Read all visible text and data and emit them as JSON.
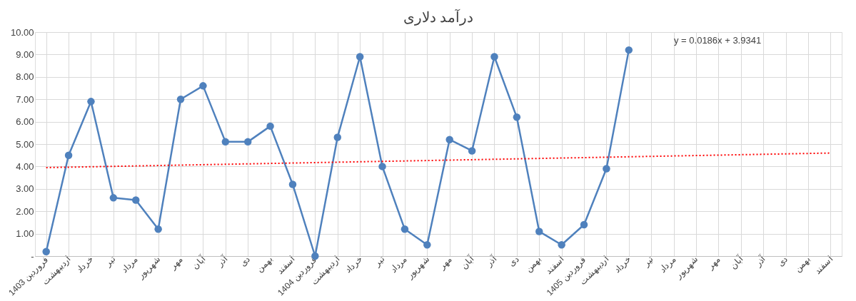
{
  "chart_data": {
    "type": "line",
    "title": "درآمد دلاری",
    "categories": [
      "فروردین 1403",
      "اردیبهشت",
      "خرداد",
      "تیر",
      "مرداد",
      "شهریور",
      "مهر",
      "آبان",
      "آذر",
      "دی",
      "بهمن",
      "اسفند",
      "فروردین 1404",
      "اردیبهشت",
      "خرداد",
      "تیر",
      "مرداد",
      "شهریور",
      "مهر",
      "آبان",
      "آذر",
      "دی",
      "بهمن",
      "اسفند",
      "فروردین 1405",
      "اردیبهشت",
      "خرداد",
      "تیر",
      "مرداد",
      "شهریور",
      "مهر",
      "آبان",
      "آذر",
      "دی",
      "بهمن",
      "اسفند"
    ],
    "series": [
      {
        "color": "#4f81bd",
        "marker": "circle",
        "line_style": "solid",
        "values": [
          0.2,
          4.5,
          6.9,
          2.6,
          2.5,
          1.2,
          7.0,
          7.6,
          5.1,
          5.1,
          5.8,
          3.2,
          0.0,
          5.3,
          8.9,
          4.0,
          1.2,
          0.5,
          5.2,
          4.7,
          8.9,
          6.2,
          1.1,
          0.5,
          1.4,
          3.9,
          9.2,
          null,
          null,
          null,
          null,
          null,
          null,
          null,
          null,
          null
        ]
      },
      {
        "color": "#ff0000",
        "marker": "none",
        "line_style": "dotted",
        "values": [
          3.95,
          null,
          null,
          null,
          null,
          null,
          null,
          null,
          null,
          null,
          null,
          null,
          null,
          null,
          null,
          null,
          null,
          null,
          null,
          null,
          null,
          null,
          null,
          null,
          null,
          null,
          null,
          null,
          null,
          null,
          null,
          null,
          null,
          null,
          null,
          4.6
        ]
      }
    ],
    "ylim": [
      0,
      10
    ],
    "yticks": [
      {
        "value": 0,
        "label": "-"
      },
      {
        "value": 1,
        "label": "1.00"
      },
      {
        "value": 2,
        "label": "2.00"
      },
      {
        "value": 3,
        "label": "3.00"
      },
      {
        "value": 4,
        "label": "4.00"
      },
      {
        "value": 5,
        "label": "5.00"
      },
      {
        "value": 6,
        "label": "6.00"
      },
      {
        "value": 7,
        "label": "7.00"
      },
      {
        "value": 8,
        "label": "8.00"
      },
      {
        "value": 9,
        "label": "9.00"
      },
      {
        "value": 10,
        "label": "10.00"
      }
    ],
    "grid": true,
    "annotations": [
      "y = 0.0186x + 3.9341"
    ]
  }
}
